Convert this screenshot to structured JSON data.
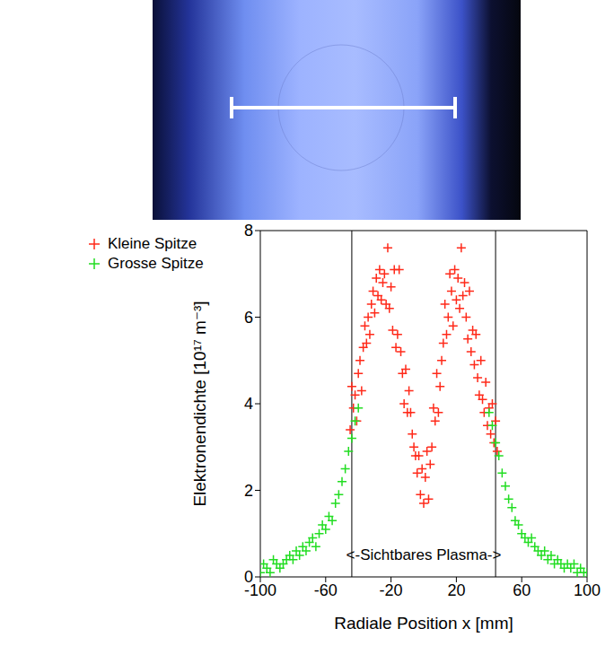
{
  "chart_data": {
    "type": "scatter",
    "xlabel": "Radiale Position x [mm]",
    "ylabel": "Elektronendichte [10¹⁷ m⁻³]",
    "xlim": [
      -100,
      100
    ],
    "xticks": [
      -100,
      -60,
      -20,
      20,
      60,
      100
    ],
    "ylim": [
      0,
      8
    ],
    "yticks": [
      0,
      2,
      4,
      6,
      8
    ],
    "legend": "upper left",
    "vlines": [
      -44,
      44
    ],
    "annotation": "<-Sichtbares Plasma->",
    "series": [
      {
        "name": "Kleine Spitze",
        "color": "#ff2a1a",
        "marker": "plus",
        "x": [
          -45,
          -44,
          -43,
          -42,
          -41,
          -40,
          -39,
          -38,
          -37,
          -36,
          -35,
          -34,
          -33,
          -32,
          -31,
          -30,
          -29,
          -28,
          -27,
          -26,
          -25,
          -24,
          -23,
          -22,
          -21,
          -20,
          -19,
          -18,
          -17,
          -16,
          -15,
          -14,
          -13,
          -12,
          -11,
          -10,
          -9,
          -8,
          -7,
          -6,
          -5,
          -4,
          -3,
          -2,
          -1,
          0,
          1,
          2,
          3,
          4,
          5,
          6,
          7,
          8,
          9,
          10,
          11,
          12,
          13,
          14,
          15,
          16,
          17,
          18,
          19,
          20,
          21,
          22,
          23,
          24,
          25,
          26,
          27,
          28,
          29,
          30,
          31,
          32,
          33,
          34,
          35,
          36,
          37,
          38,
          39,
          40,
          41,
          42,
          43,
          44,
          45
        ],
        "values": [
          3.4,
          4.4,
          3.9,
          4.2,
          3.6,
          4.7,
          5.0,
          4.3,
          5.3,
          5.8,
          5.4,
          6.0,
          5.6,
          6.3,
          6.6,
          6.1,
          6.9,
          6.5,
          7.1,
          6.4,
          6.8,
          7.0,
          6.3,
          7.6,
          6.2,
          6.7,
          5.7,
          7.1,
          5.3,
          5.6,
          7.1,
          5.2,
          4.7,
          4.0,
          4.8,
          3.8,
          4.3,
          3.8,
          3.3,
          3.0,
          2.8,
          2.4,
          2.8,
          1.9,
          2.5,
          1.7,
          2.3,
          2.9,
          1.8,
          2.6,
          3.0,
          3.9,
          3.6,
          4.7,
          3.8,
          4.4,
          5.0,
          5.4,
          6.3,
          5.6,
          6.0,
          7.0,
          6.6,
          5.8,
          7.1,
          6.4,
          6.9,
          6.2,
          7.6,
          6.5,
          6.8,
          6.0,
          5.5,
          6.6,
          5.2,
          5.7,
          4.9,
          5.6,
          4.6,
          4.2,
          5.0,
          4.1,
          3.8,
          4.5,
          3.5,
          3.9,
          3.3,
          4.0,
          3.1,
          3.6,
          2.9
        ]
      },
      {
        "name": "Grosse Spitze",
        "color": "#22dd22",
        "marker": "plus",
        "x": [
          -100,
          -98,
          -96,
          -94,
          -92,
          -90,
          -88,
          -86,
          -84,
          -82,
          -80,
          -78,
          -76,
          -74,
          -72,
          -70,
          -68,
          -66,
          -64,
          -62,
          -60,
          -58,
          -56,
          -54,
          -52,
          -50,
          -48,
          -46,
          -44,
          -42,
          -40,
          40,
          42,
          44,
          46,
          48,
          50,
          52,
          54,
          56,
          58,
          60,
          62,
          64,
          66,
          68,
          70,
          72,
          74,
          76,
          78,
          80,
          82,
          84,
          86,
          88,
          90,
          92,
          94,
          96,
          98,
          100
        ],
        "values": [
          0.1,
          0.3,
          0.2,
          0.1,
          0.4,
          0.3,
          0.2,
          0.3,
          0.4,
          0.5,
          0.4,
          0.6,
          0.5,
          0.7,
          0.6,
          0.8,
          0.9,
          0.7,
          1.0,
          1.2,
          1.1,
          1.4,
          1.3,
          1.7,
          1.9,
          2.2,
          2.5,
          2.9,
          3.2,
          3.6,
          3.9,
          3.8,
          3.5,
          3.1,
          2.8,
          2.4,
          2.1,
          1.8,
          1.6,
          1.3,
          1.2,
          1.0,
          0.9,
          0.8,
          0.9,
          0.7,
          0.6,
          0.5,
          0.6,
          0.4,
          0.5,
          0.3,
          0.4,
          0.3,
          0.2,
          0.3,
          0.2,
          0.3,
          0.1,
          0.2,
          0.1,
          0.1
        ]
      }
    ]
  }
}
